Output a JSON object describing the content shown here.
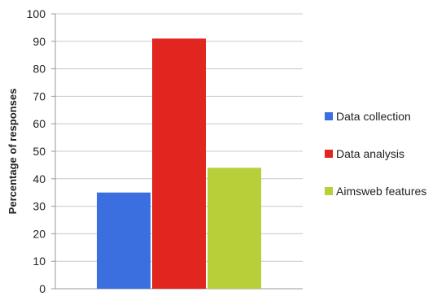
{
  "chart_data": {
    "type": "bar",
    "categories": [
      "Data collection",
      "Data analysis",
      "Aimsweb features"
    ],
    "values": [
      35,
      91,
      44
    ],
    "colors": [
      "#3b6fe0",
      "#e0261f",
      "#b8cf3a"
    ],
    "ylabel": "Percentage of responses",
    "ylim": [
      0,
      100
    ],
    "yticks": [
      0,
      10,
      20,
      30,
      40,
      50,
      60,
      70,
      80,
      90,
      100
    ],
    "grid": true,
    "legend": [
      "Data collection",
      "Data analysis",
      "Aimsweb features"
    ],
    "legend_position": "right"
  }
}
